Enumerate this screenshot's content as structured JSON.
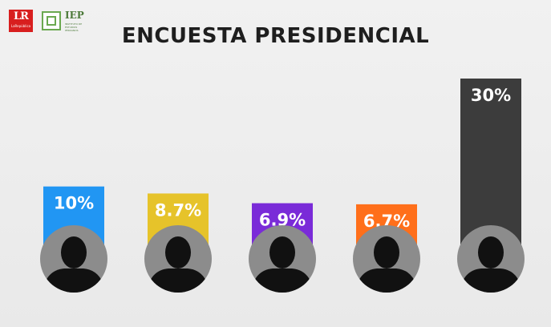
{
  "header": {
    "logo_lr": "LR",
    "logo_lr_sub": "LaRepública",
    "logo_iep": "IEP",
    "logo_iep_sub": "INSTITUTO DE ESTUDIOS PERUANOS"
  },
  "chart_data": {
    "type": "bar",
    "title": "ENCUESTA PRESIDENCIAL",
    "categories": [
      "",
      "",
      "",
      "",
      ""
    ],
    "values": [
      10,
      8.7,
      6.9,
      6.7,
      30
    ],
    "labels": [
      "10%",
      "8.7%",
      "6.9%",
      "6.7%",
      "30%"
    ],
    "colors": [
      "#2196f3",
      "#e6c32a",
      "#7a2bd8",
      "#ff6f1a",
      "#3c3c3c"
    ],
    "ylim": [
      0,
      30
    ],
    "grid": false,
    "xlabel": "",
    "ylabel": ""
  }
}
